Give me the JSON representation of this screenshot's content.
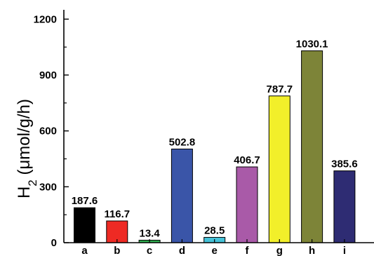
{
  "chart_data": {
    "type": "bar",
    "categories": [
      "a",
      "b",
      "c",
      "d",
      "e",
      "f",
      "g",
      "h",
      "i"
    ],
    "values": [
      187.6,
      116.7,
      13.4,
      502.8,
      28.5,
      406.7,
      787.7,
      1030.1,
      385.6
    ],
    "value_labels": [
      "187.6",
      "116.7",
      "13.4",
      "502.8",
      "28.5",
      "406.7",
      "787.7",
      "1030.1",
      "385.6"
    ],
    "colors": [
      "#000000",
      "#ee2a24",
      "#2fae4f",
      "#3a55a8",
      "#45c2d8",
      "#a95aa8",
      "#f2ef2a",
      "#7d8438",
      "#2e2c73"
    ],
    "title": "",
    "xlabel": "",
    "ylabel": "H2 (μmol/g/h)",
    "ylabel_main": "H",
    "ylabel_sub": "2",
    "ylabel_rest": " (μmol/g/h)",
    "ylim": [
      0,
      1250
    ],
    "yticks": [
      0,
      300,
      600,
      900,
      1200
    ],
    "ytick_labels": [
      "0",
      "300",
      "600",
      "900",
      "1200"
    ],
    "grid": false,
    "legend": "none"
  }
}
